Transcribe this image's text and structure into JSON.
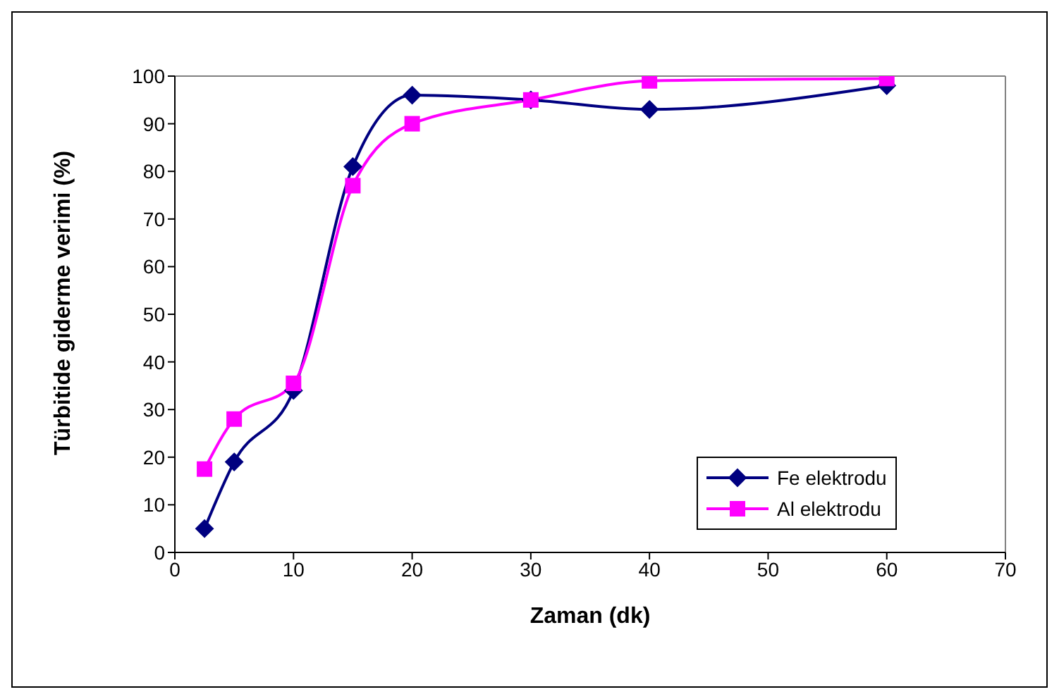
{
  "chart_data": {
    "type": "line",
    "xlabel": "Zaman (dk)",
    "ylabel": "Türbitide giderme verimi (%)",
    "xlim": [
      0,
      70
    ],
    "xticks": [
      0,
      10,
      20,
      30,
      40,
      50,
      60,
      70
    ],
    "ylim": [
      0,
      100
    ],
    "yticks": [
      0,
      10,
      20,
      30,
      40,
      50,
      60,
      70,
      80,
      90,
      100
    ],
    "x": [
      2.5,
      5,
      10,
      15,
      20,
      30,
      40,
      60
    ],
    "series": [
      {
        "name": "Fe elektrodu",
        "color": "#000080",
        "marker": "diamond",
        "values": [
          5,
          19,
          34,
          81,
          96,
          95,
          93,
          98
        ]
      },
      {
        "name": "Al elektrodu",
        "color": "#ff00ff",
        "marker": "square",
        "values": [
          17.5,
          28,
          35.5,
          77,
          90,
          95,
          99,
          99.5
        ]
      }
    ],
    "grid": false,
    "legend": "bottom right"
  }
}
